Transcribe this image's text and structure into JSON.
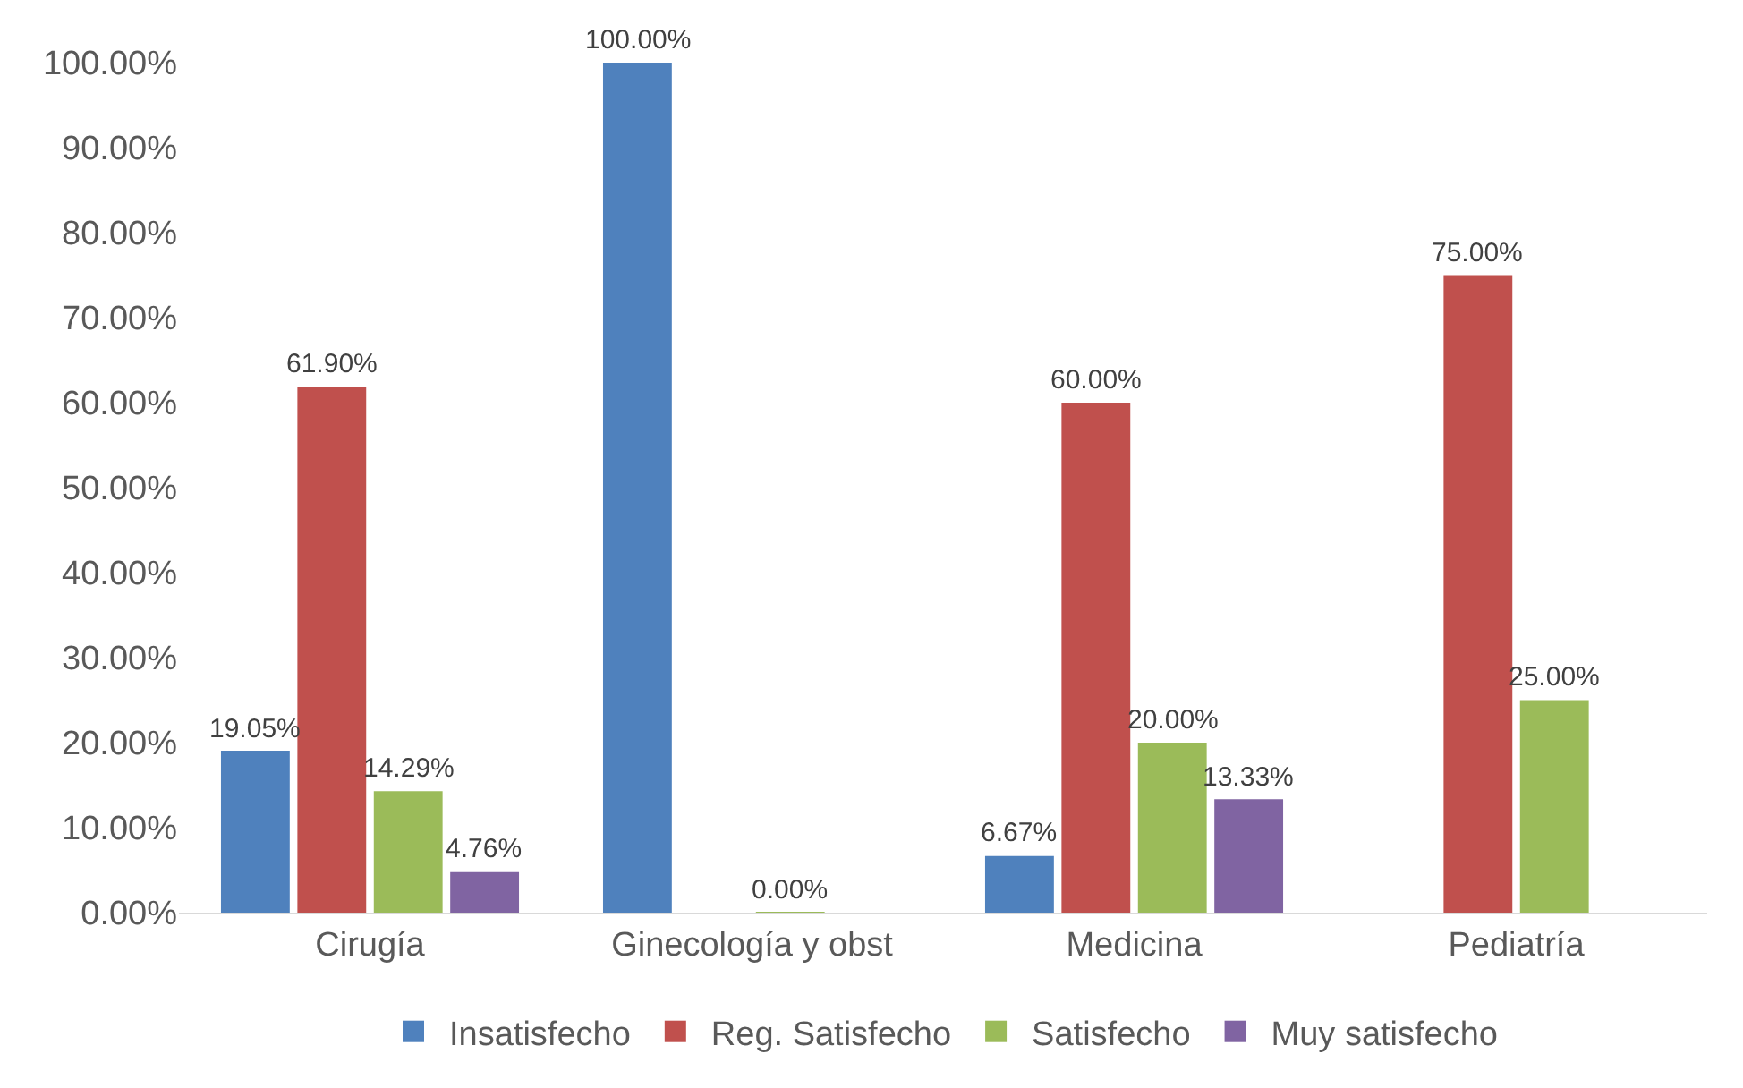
{
  "chart_data": {
    "type": "bar",
    "categories": [
      "Cirugía",
      "Ginecología y obst",
      "Medicina",
      "Pediatría"
    ],
    "series": [
      {
        "name": "Insatisfecho",
        "color": "#4f81bd",
        "values": [
          19.05,
          100,
          6.67,
          null
        ],
        "value_labels": [
          "19.05%",
          "100.00%",
          "6.67%",
          null
        ]
      },
      {
        "name": "Reg. Satisfecho",
        "color": "#c0504d",
        "values": [
          61.9,
          null,
          60,
          75
        ],
        "value_labels": [
          "61.90%",
          null,
          "60.00%",
          "75.00%"
        ]
      },
      {
        "name": "Satisfecho",
        "color": "#9bbb59",
        "values": [
          14.29,
          0,
          20,
          25
        ],
        "value_labels": [
          "14.29%",
          "0.00%",
          "20.00%",
          "25.00%"
        ]
      },
      {
        "name": "Muy satisfecho",
        "color": "#8064a2",
        "values": [
          4.76,
          null,
          13.33,
          null
        ],
        "value_labels": [
          "4.76%",
          null,
          "13.33%",
          null
        ]
      }
    ],
    "ylim": [
      0,
      100
    ],
    "yticks": [
      {
        "value": 0,
        "label": "0.00%"
      },
      {
        "value": 10,
        "label": "10.00%"
      },
      {
        "value": 20,
        "label": "20.00%"
      },
      {
        "value": 30,
        "label": "30.00%"
      },
      {
        "value": 40,
        "label": "40.00%"
      },
      {
        "value": 50,
        "label": "50.00%"
      },
      {
        "value": 60,
        "label": "60.00%"
      },
      {
        "value": 70,
        "label": "70.00%"
      },
      {
        "value": 80,
        "label": "80.00%"
      },
      {
        "value": 90,
        "label": "90.00%"
      },
      {
        "value": 100,
        "label": "100.00%"
      }
    ],
    "grid": false,
    "legend": "bottom"
  }
}
